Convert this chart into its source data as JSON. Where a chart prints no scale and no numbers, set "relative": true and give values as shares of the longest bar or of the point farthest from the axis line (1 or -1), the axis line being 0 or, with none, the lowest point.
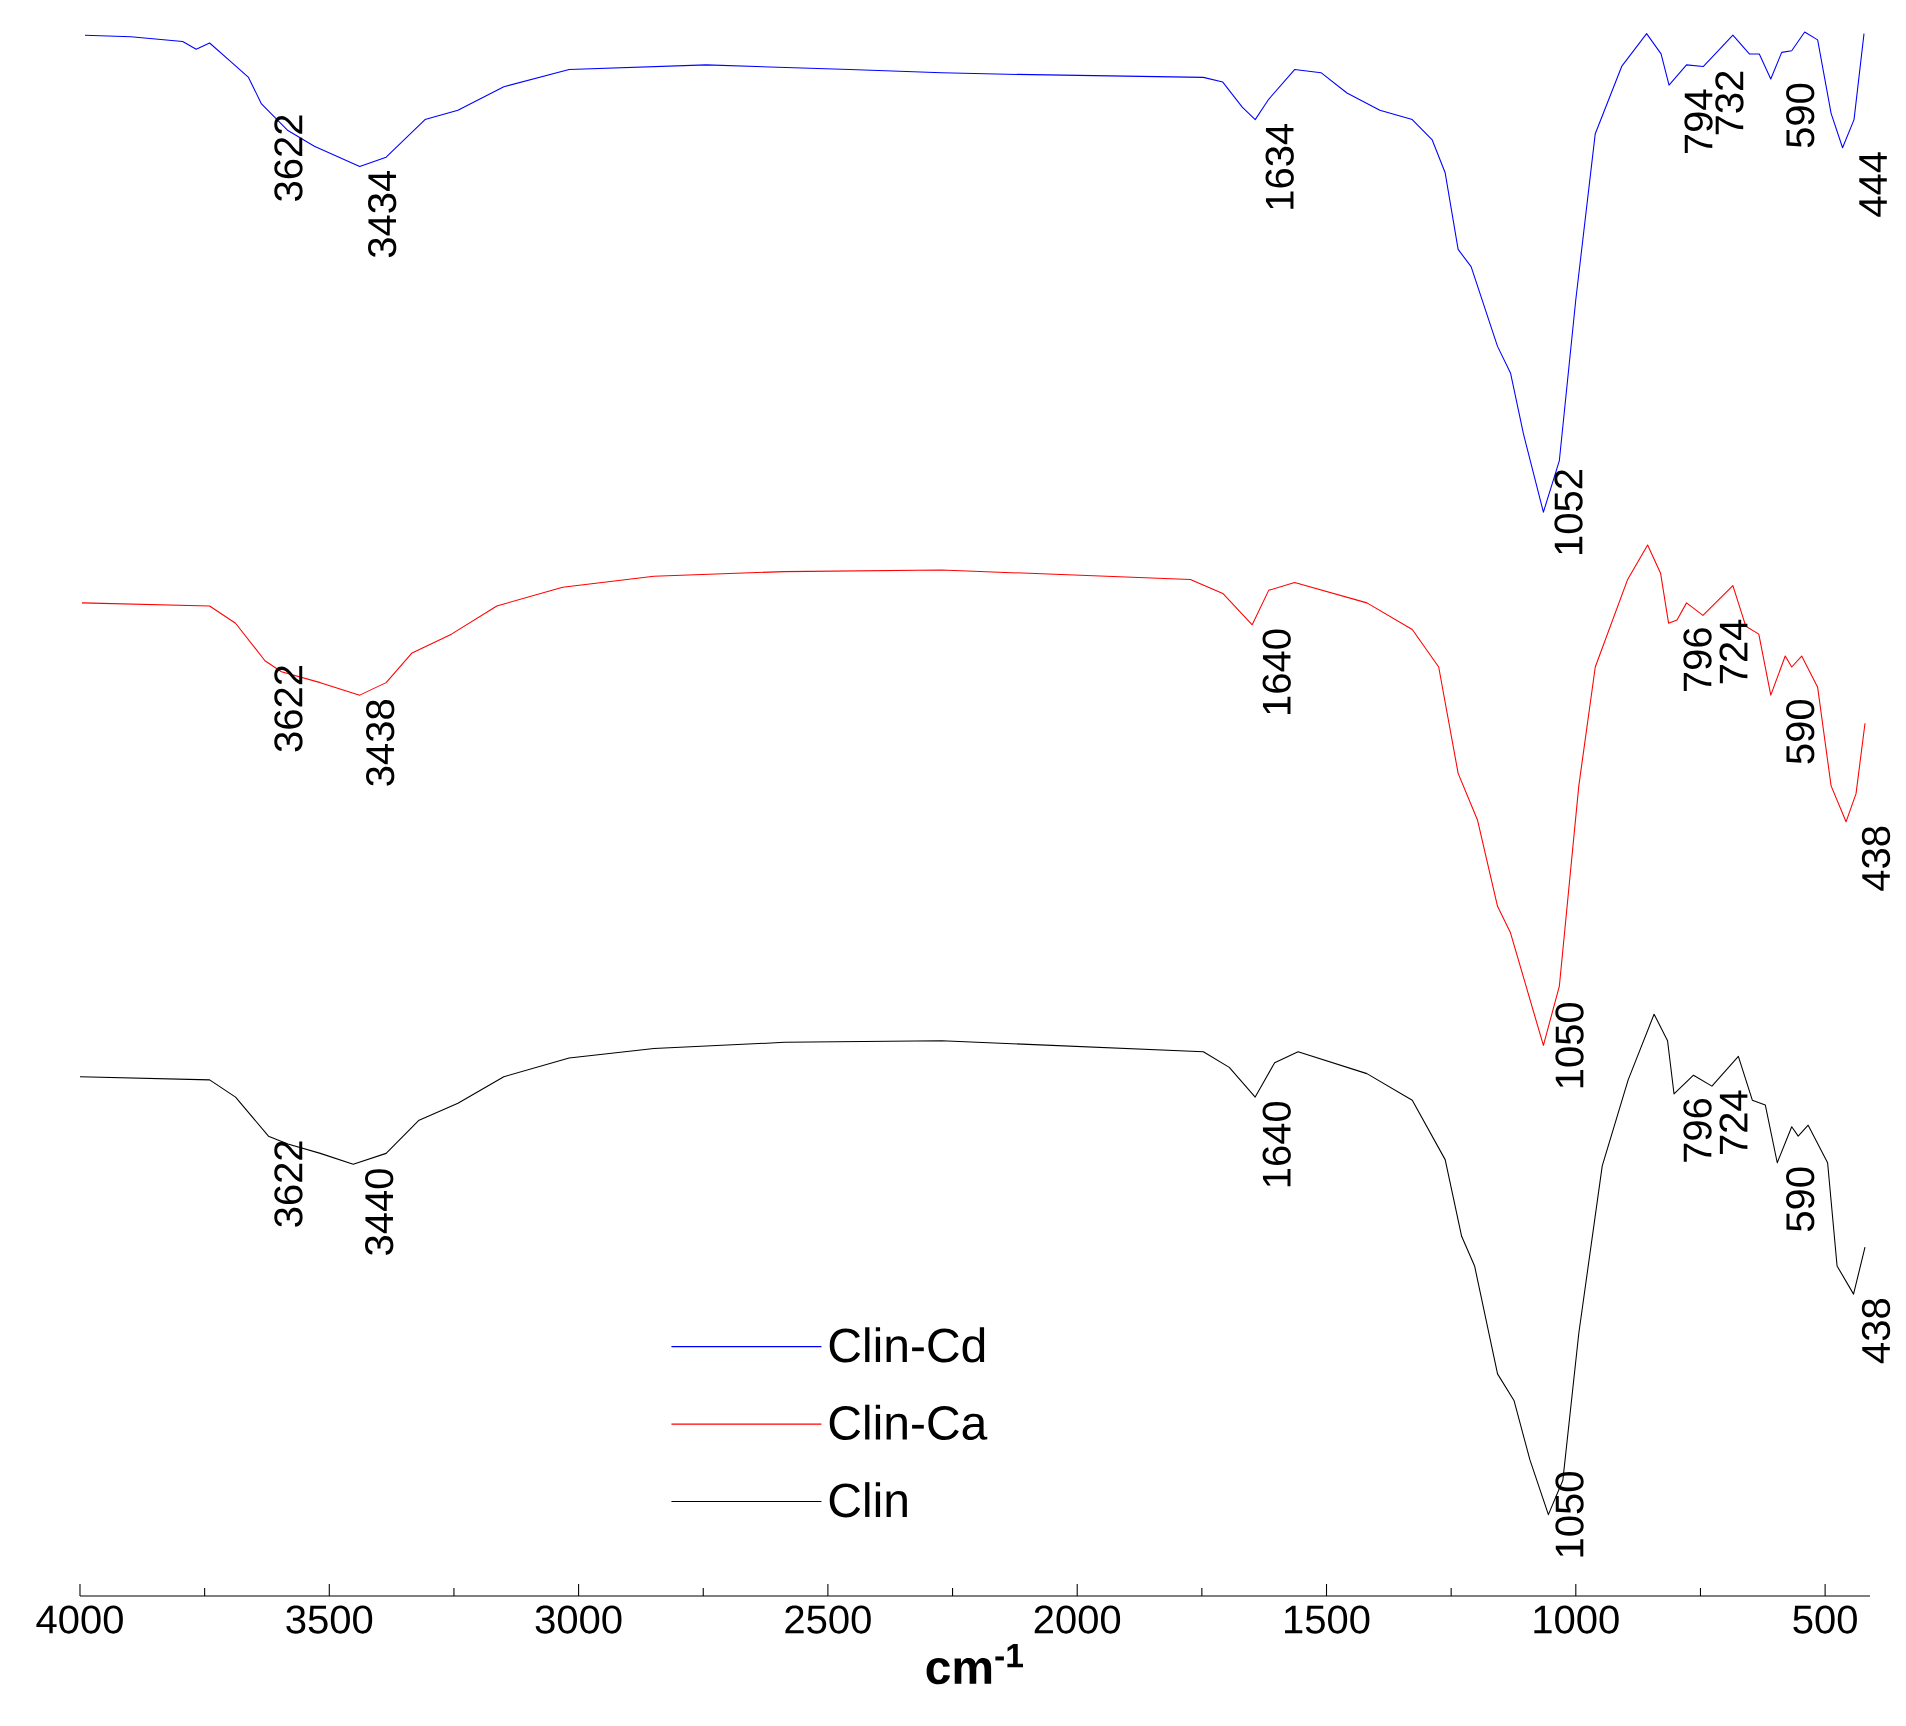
{
  "chart_data": {
    "type": "line",
    "relative": true,
    "xlabel": "cm$^{-1}$",
    "xlim": [
      4000,
      410
    ],
    "xticks": [
      4000,
      3500,
      3000,
      2500,
      2000,
      1500,
      1000,
      500
    ],
    "legend": "bottom",
    "series": [
      {
        "name": "Clin-Cd",
        "color": "#0000ff",
        "x": [
          3990,
          3898,
          3794,
          3767,
          3740,
          3701,
          3662,
          3636,
          3583,
          3530,
          3439,
          3386,
          3308,
          3242,
          3150,
          3019,
          2744,
          2456,
          2272,
          2141,
          1747,
          1708,
          1669,
          1643,
          1616,
          1564,
          1511,
          1459,
          1393,
          1328,
          1288,
          1262,
          1236,
          1210,
          1157,
          1131,
          1105,
          1065,
          1033,
          1000,
          961,
          908,
          858,
          829,
          813,
          778,
          744,
          685,
          652,
          632,
          609,
          587,
          567,
          541,
          515,
          488,
          465,
          442,
          422
        ],
        "values": [
          0.998,
          0.997,
          0.994,
          0.989,
          0.993,
          0.982,
          0.971,
          0.954,
          0.937,
          0.927,
          0.914,
          0.92,
          0.944,
          0.95,
          0.965,
          0.976,
          0.979,
          0.976,
          0.974,
          0.973,
          0.971,
          0.968,
          0.952,
          0.944,
          0.957,
          0.976,
          0.974,
          0.961,
          0.95,
          0.944,
          0.931,
          0.91,
          0.861,
          0.85,
          0.799,
          0.782,
          0.743,
          0.693,
          0.726,
          0.829,
          0.935,
          0.978,
          0.999,
          0.986,
          0.966,
          0.979,
          0.978,
          0.998,
          0.986,
          0.986,
          0.97,
          0.987,
          0.988,
          1.0,
          0.995,
          0.948,
          0.926,
          0.944,
          0.999
        ]
      },
      {
        "name": "Clin-Ca",
        "color": "#ff0000",
        "x": [
          3996,
          3740,
          3688,
          3629,
          3596,
          3518,
          3439,
          3386,
          3334,
          3255,
          3164,
          3032,
          2849,
          2587,
          2272,
          1773,
          1708,
          1649,
          1616,
          1564,
          1419,
          1328,
          1275,
          1236,
          1197,
          1157,
          1131,
          1065,
          1033,
          994,
          961,
          896,
          856,
          830,
          814,
          797,
          778,
          745,
          685,
          659,
          633,
          609,
          580,
          567,
          547,
          515,
          488,
          458,
          438,
          420
        ],
        "values": [
          0.635,
          0.633,
          0.622,
          0.598,
          0.591,
          0.584,
          0.576,
          0.584,
          0.603,
          0.615,
          0.633,
          0.645,
          0.652,
          0.655,
          0.656,
          0.65,
          0.641,
          0.621,
          0.643,
          0.648,
          0.635,
          0.618,
          0.594,
          0.526,
          0.496,
          0.441,
          0.424,
          0.352,
          0.39,
          0.518,
          0.594,
          0.65,
          0.672,
          0.654,
          0.622,
          0.624,
          0.635,
          0.627,
          0.646,
          0.62,
          0.615,
          0.576,
          0.601,
          0.594,
          0.601,
          0.581,
          0.518,
          0.495,
          0.513,
          0.558
        ]
      },
      {
        "name": "Clin",
        "color": "#000000",
        "x": [
          4000,
          3740,
          3688,
          3622,
          3583,
          3518,
          3452,
          3386,
          3321,
          3242,
          3150,
          3019,
          2849,
          2587,
          2272,
          1747,
          1695,
          1643,
          1604,
          1557,
          1419,
          1328,
          1262,
          1229,
          1203,
          1157,
          1124,
          1092,
          1055,
          1026,
          994,
          947,
          895,
          843,
          816,
          803,
          764,
          727,
          674,
          646,
          620,
          596,
          567,
          554,
          534,
          495,
          476,
          443,
          420
        ],
        "values": [
          0.332,
          0.33,
          0.319,
          0.294,
          0.289,
          0.283,
          0.276,
          0.283,
          0.304,
          0.315,
          0.332,
          0.344,
          0.35,
          0.354,
          0.355,
          0.348,
          0.338,
          0.319,
          0.341,
          0.348,
          0.334,
          0.317,
          0.279,
          0.23,
          0.211,
          0.142,
          0.125,
          0.087,
          0.052,
          0.074,
          0.168,
          0.275,
          0.33,
          0.372,
          0.355,
          0.321,
          0.333,
          0.326,
          0.345,
          0.317,
          0.314,
          0.277,
          0.3,
          0.294,
          0.301,
          0.277,
          0.211,
          0.193,
          0.223
        ]
      }
    ],
    "annotations": [
      {
        "text": "3622",
        "x": 3622,
        "y": 0.95
      },
      {
        "text": "3434",
        "x": 3434,
        "y": 0.914
      },
      {
        "text": "1634",
        "x": 1634,
        "y": 0.944
      },
      {
        "text": "1052",
        "x": 1052,
        "y": 0.693
      },
      {
        "text": "794",
        "x": 794,
        "y": 0.966
      },
      {
        "text": "732",
        "x": 732,
        "y": 0.978
      },
      {
        "text": "590",
        "x": 590,
        "y": 0.97
      },
      {
        "text": "444",
        "x": 444,
        "y": 0.926
      },
      {
        "text": "3622",
        "x": 3622,
        "y": 0.598
      },
      {
        "text": "3438",
        "x": 3438,
        "y": 0.576
      },
      {
        "text": "1640",
        "x": 1640,
        "y": 0.621
      },
      {
        "text": "1050",
        "x": 1050,
        "y": 0.352
      },
      {
        "text": "796",
        "x": 796,
        "y": 0.622
      },
      {
        "text": "724",
        "x": 724,
        "y": 0.627
      },
      {
        "text": "590",
        "x": 590,
        "y": 0.576
      },
      {
        "text": "438",
        "x": 438,
        "y": 0.495
      },
      {
        "text": "3622",
        "x": 3622,
        "y": 0.294
      },
      {
        "text": "3440",
        "x": 3440,
        "y": 0.276
      },
      {
        "text": "1640",
        "x": 1640,
        "y": 0.319
      },
      {
        "text": "1050",
        "x": 1050,
        "y": 0.052
      },
      {
        "text": "796",
        "x": 796,
        "y": 0.321
      },
      {
        "text": "724",
        "x": 724,
        "y": 0.326
      },
      {
        "text": "590",
        "x": 590,
        "y": 0.277
      },
      {
        "text": "438",
        "x": 438,
        "y": 0.193
      }
    ]
  }
}
